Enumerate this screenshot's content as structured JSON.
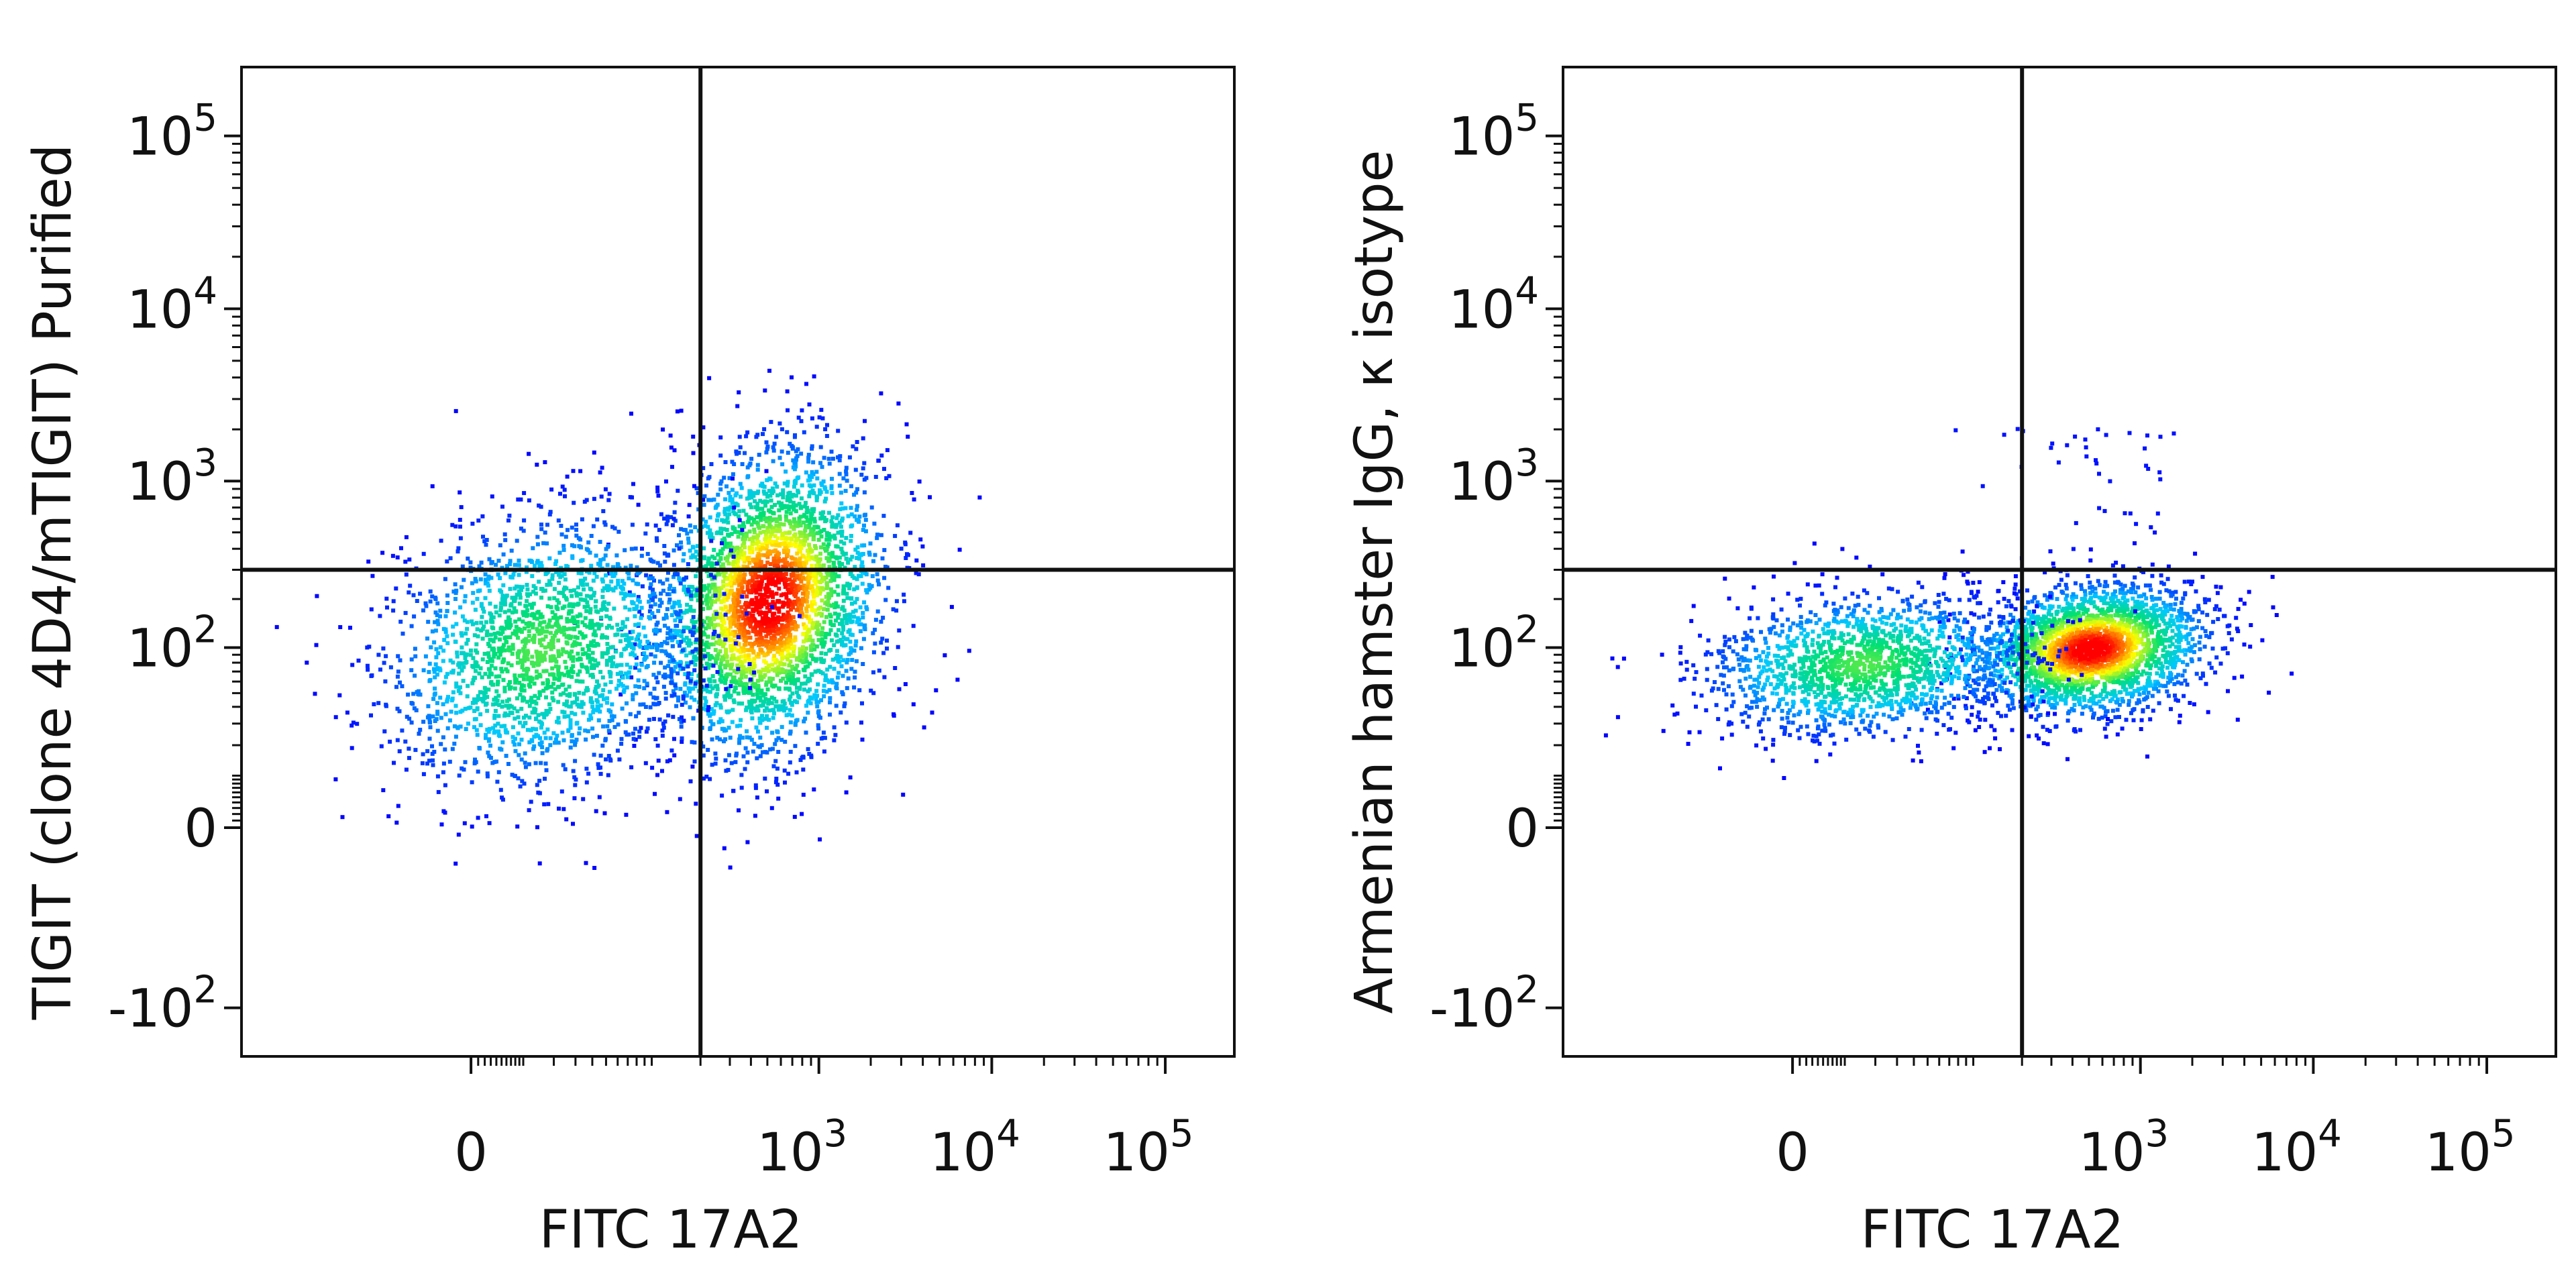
{
  "chart_data": [
    {
      "type": "scatter",
      "subtype": "flow-cytometry density dot plot",
      "xlabel": "FITC 17A2",
      "ylabel": "TIGIT (clone 4D4/mTIGIT) Purified",
      "x_scale": "biexponential",
      "y_scale": "biexponential",
      "x_ticks": [
        {
          "value": 0,
          "base": "0",
          "exp": ""
        },
        {
          "value": 1000,
          "base": "10",
          "exp": "3"
        },
        {
          "value": 10000,
          "base": "10",
          "exp": "4"
        },
        {
          "value": 100000,
          "base": "10",
          "exp": "5"
        }
      ],
      "y_ticks": [
        {
          "value": -100,
          "base": "-10",
          "exp": "2"
        },
        {
          "value": 0,
          "base": "0",
          "exp": ""
        },
        {
          "value": 100,
          "base": "10",
          "exp": "2"
        },
        {
          "value": 1000,
          "base": "10",
          "exp": "3"
        },
        {
          "value": 10000,
          "base": "10",
          "exp": "4"
        },
        {
          "value": 100000,
          "base": "10",
          "exp": "5"
        }
      ],
      "x_range": [
        -200,
        250000
      ],
      "y_range": [
        -200,
        250000
      ],
      "quadrant_gate": {
        "x": 200,
        "y": 300
      },
      "populations": [
        {
          "name": "",
          "x_center": 500,
          "y_center": 200,
          "density": "high"
        },
        {
          "name": "",
          "x_center": 15,
          "y_center": 100,
          "density": "medium"
        }
      ],
      "colormap": [
        "#0000ff",
        "#00c8ff",
        "#00e070",
        "#ffff00",
        "#ff0000"
      ]
    },
    {
      "type": "scatter",
      "subtype": "flow-cytometry density dot plot",
      "xlabel": "FITC 17A2",
      "ylabel": "Armenian hamster IgG, κ isotype",
      "x_scale": "biexponential",
      "y_scale": "biexponential",
      "x_ticks": [
        {
          "value": 0,
          "base": "0",
          "exp": ""
        },
        {
          "value": 1000,
          "base": "10",
          "exp": "3"
        },
        {
          "value": 10000,
          "base": "10",
          "exp": "4"
        },
        {
          "value": 100000,
          "base": "10",
          "exp": "5"
        }
      ],
      "y_ticks": [
        {
          "value": -100,
          "base": "-10",
          "exp": "2"
        },
        {
          "value": 0,
          "base": "0",
          "exp": ""
        },
        {
          "value": 100,
          "base": "10",
          "exp": "2"
        },
        {
          "value": 1000,
          "base": "10",
          "exp": "3"
        },
        {
          "value": 10000,
          "base": "10",
          "exp": "4"
        },
        {
          "value": 100000,
          "base": "10",
          "exp": "5"
        }
      ],
      "x_range": [
        -200,
        250000
      ],
      "y_range": [
        -200,
        250000
      ],
      "quadrant_gate": {
        "x": 200,
        "y": 300
      },
      "populations": [
        {
          "name": "",
          "x_center": 500,
          "y_center": 100,
          "density": "high"
        },
        {
          "name": "",
          "x_center": 15,
          "y_center": 80,
          "density": "medium"
        }
      ],
      "colormap": [
        "#0000ff",
        "#00c8ff",
        "#00e070",
        "#ffff00",
        "#ff0000"
      ]
    }
  ]
}
